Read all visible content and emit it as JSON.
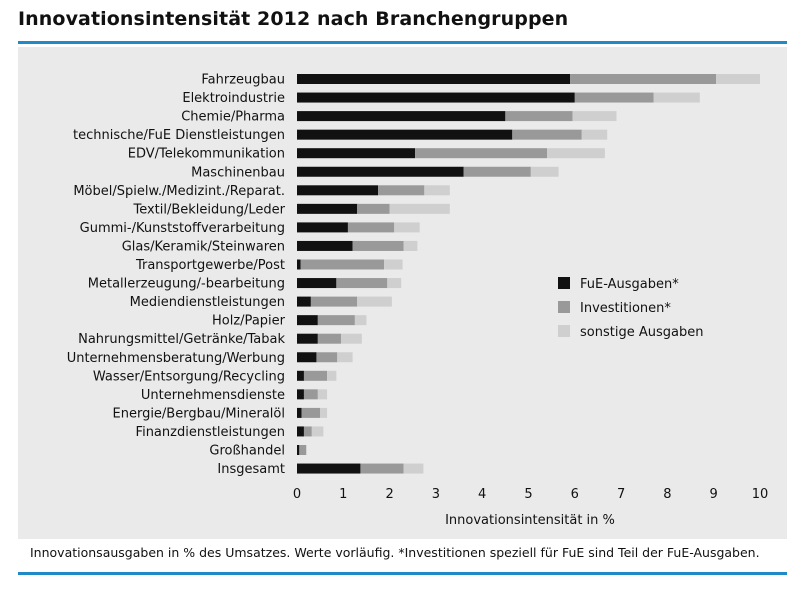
{
  "title": "Innovationsintensität 2012 nach Branchengruppen",
  "footnote": "Innovationsausgaben in % des Umsatzes. Werte vorläufig. *Investitionen speziell für FuE sind Teil der FuE-Ausgaben.",
  "colors": {
    "rule": "#1f8ac6",
    "panel": "#eaeaea",
    "fue": "#111111",
    "investitionen": "#999999",
    "sonstige": "#cfcfcf"
  },
  "chart_data": {
    "type": "bar",
    "orientation": "horizontal",
    "stacked": true,
    "xlabel": "Innovationsintensität in %",
    "xlim": [
      0,
      10
    ],
    "xticks": [
      "0",
      "1",
      "2",
      "3",
      "4",
      "5",
      "6",
      "7",
      "8",
      "9",
      "10"
    ],
    "legend_position": "right",
    "grid": false,
    "categories": [
      "Fahrzeugbau",
      "Elektroindustrie",
      "Chemie/Pharma",
      "technische/FuE Dienstleistungen",
      "EDV/Telekommunikation",
      "Maschinenbau",
      "Möbel/Spielw./Medizint./Reparat.",
      "Textil/Bekleidung/Leder",
      "Gummi-/Kunststoffverarbeitung",
      "Glas/Keramik/Steinwaren",
      "Transportgewerbe/Post",
      "Metallerzeugung/-bearbeitung",
      "Mediendienstleistungen",
      "Holz/Papier",
      "Nahrungsmittel/Getränke/Tabak",
      "Unternehmensberatung/Werbung",
      "Wasser/Entsorgung/Recycling",
      "Unternehmensdienste",
      "Energie/Bergbau/Mineralöl",
      "Finanzdienstleistungen",
      "Großhandel",
      "Insgesamt"
    ],
    "series": [
      {
        "name": "FuE-Ausgaben*",
        "color": "#111111",
        "values": [
          5.9,
          6.0,
          4.5,
          4.65,
          2.55,
          3.6,
          1.75,
          1.3,
          1.1,
          1.2,
          0.08,
          0.85,
          0.3,
          0.45,
          0.45,
          0.42,
          0.15,
          0.15,
          0.1,
          0.15,
          0.05,
          1.37
        ]
      },
      {
        "name": "Investitionen*",
        "color": "#999999",
        "values": [
          3.15,
          1.7,
          1.45,
          1.5,
          2.85,
          1.45,
          1.0,
          0.7,
          1.0,
          1.1,
          1.8,
          1.1,
          1.0,
          0.8,
          0.5,
          0.45,
          0.5,
          0.3,
          0.4,
          0.17,
          0.15,
          0.93
        ]
      },
      {
        "name": "sonstige Ausgaben",
        "color": "#cfcfcf",
        "values": [
          0.95,
          1.0,
          0.95,
          0.55,
          1.25,
          0.6,
          0.55,
          1.3,
          0.55,
          0.3,
          0.4,
          0.3,
          0.75,
          0.25,
          0.45,
          0.33,
          0.2,
          0.2,
          0.15,
          0.25,
          0.0,
          0.43
        ]
      }
    ]
  }
}
